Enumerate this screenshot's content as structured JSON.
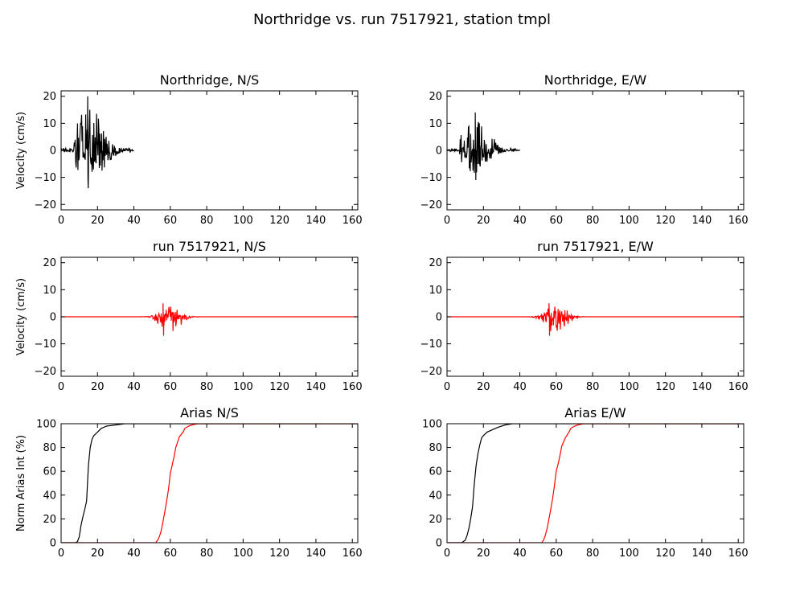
{
  "suptitle": "Northridge vs. run 7517921, station tmpl",
  "colors": {
    "observed": "#000000",
    "simulated": "#ff0000"
  },
  "chart_data": [
    {
      "id": "p1",
      "type": "line",
      "title": "Northridge, N/S",
      "ylabel": "Velocity (cm/s)",
      "xlim": [
        0,
        163
      ],
      "ylim": [
        -22,
        22
      ],
      "xticks": [
        "0",
        "20",
        "40",
        "60",
        "80",
        "100",
        "120",
        "140",
        "160"
      ],
      "yticks": [
        "20",
        "10",
        "0",
        "-10",
        "-20"
      ],
      "series": [
        {
          "color": "observed",
          "duration": [
            0,
            40
          ],
          "peak_time": 14.6,
          "max": 20,
          "min": -14,
          "envelope": "early"
        }
      ]
    },
    {
      "id": "p2",
      "type": "line",
      "title": "Northridge, E/W",
      "ylabel": "",
      "xlim": [
        0,
        163
      ],
      "ylim": [
        -22,
        22
      ],
      "xticks": [
        "0",
        "20",
        "40",
        "60",
        "80",
        "100",
        "120",
        "140",
        "160"
      ],
      "yticks": [
        "20",
        "10",
        "0",
        "-10",
        "-20"
      ],
      "series": [
        {
          "color": "observed",
          "duration": [
            0,
            40
          ],
          "peak_time": 15.5,
          "max": 14,
          "min": -11,
          "envelope": "early"
        }
      ]
    },
    {
      "id": "p3",
      "type": "line",
      "title": "run 7517921, N/S",
      "ylabel": "Velocity (cm/s)",
      "xlim": [
        0,
        163
      ],
      "ylim": [
        -22,
        22
      ],
      "xticks": [
        "0",
        "20",
        "40",
        "60",
        "80",
        "100",
        "120",
        "140",
        "160"
      ],
      "yticks": [
        "20",
        "10",
        "0",
        "-10",
        "-20"
      ],
      "series": [
        {
          "color": "simulated",
          "duration": [
            0,
            163
          ],
          "peak_time": 56,
          "max": 5,
          "min": -7,
          "envelope": "late"
        }
      ]
    },
    {
      "id": "p4",
      "type": "line",
      "title": "run 7517921, E/W",
      "ylabel": "",
      "xlim": [
        0,
        163
      ],
      "ylim": [
        -22,
        22
      ],
      "xticks": [
        "0",
        "20",
        "40",
        "60",
        "80",
        "100",
        "120",
        "140",
        "160"
      ],
      "yticks": [
        "20",
        "10",
        "0",
        "-10",
        "-20"
      ],
      "series": [
        {
          "color": "simulated",
          "duration": [
            0,
            163
          ],
          "peak_time": 56,
          "max": 5,
          "min": -7,
          "envelope": "late"
        }
      ]
    },
    {
      "id": "p5",
      "type": "line",
      "title": "Arias N/S",
      "ylabel": "Norm Arias Int (%)",
      "xlim": [
        0,
        163
      ],
      "ylim": [
        0,
        100
      ],
      "xticks": [
        "0",
        "20",
        "40",
        "60",
        "80",
        "100",
        "120",
        "140",
        "160"
      ],
      "yticks": [
        "100",
        "80",
        "60",
        "40",
        "20",
        "0"
      ],
      "series": [
        {
          "color": "observed",
          "x": [
            0,
            8,
            9,
            10,
            11,
            12,
            13,
            14,
            15,
            16,
            17,
            18,
            20,
            22,
            25,
            30,
            35,
            38,
            40,
            163
          ],
          "y": [
            0,
            0,
            1,
            5,
            15,
            22,
            28,
            35,
            65,
            80,
            87,
            90,
            93,
            96,
            98,
            99,
            100,
            100,
            100,
            100
          ]
        },
        {
          "color": "simulated",
          "x": [
            0,
            50,
            52,
            53,
            54,
            55,
            56,
            57,
            58,
            59,
            60,
            61,
            62,
            63,
            65,
            67,
            68,
            70,
            72,
            75,
            80,
            163
          ],
          "y": [
            0,
            0,
            0,
            2,
            5,
            10,
            18,
            26,
            35,
            45,
            58,
            65,
            72,
            80,
            89,
            93,
            96,
            98,
            99,
            100,
            100,
            100
          ]
        }
      ]
    },
    {
      "id": "p6",
      "type": "line",
      "title": "Arias E/W",
      "ylabel": "",
      "xlim": [
        0,
        163
      ],
      "ylim": [
        0,
        100
      ],
      "xticks": [
        "0",
        "20",
        "40",
        "60",
        "80",
        "100",
        "120",
        "140",
        "160"
      ],
      "yticks": [
        "100",
        "80",
        "60",
        "40",
        "20",
        "0"
      ],
      "series": [
        {
          "color": "observed",
          "x": [
            0,
            8,
            10,
            11,
            12,
            13,
            14,
            15,
            16,
            17,
            18,
            19,
            20,
            22,
            25,
            28,
            32,
            36,
            40,
            163
          ],
          "y": [
            0,
            0,
            2,
            6,
            12,
            20,
            30,
            50,
            65,
            75,
            82,
            88,
            90,
            93,
            95,
            97,
            99,
            100,
            100,
            100
          ]
        },
        {
          "color": "simulated",
          "x": [
            0,
            50,
            52,
            53,
            54,
            55,
            56,
            57,
            58,
            59,
            60,
            61,
            62,
            63,
            65,
            67,
            68,
            70,
            72,
            75,
            80,
            163
          ],
          "y": [
            0,
            0,
            0,
            2,
            6,
            12,
            20,
            28,
            37,
            48,
            60,
            66,
            73,
            81,
            88,
            93,
            96,
            98,
            99,
            100,
            100,
            100
          ]
        }
      ]
    }
  ]
}
